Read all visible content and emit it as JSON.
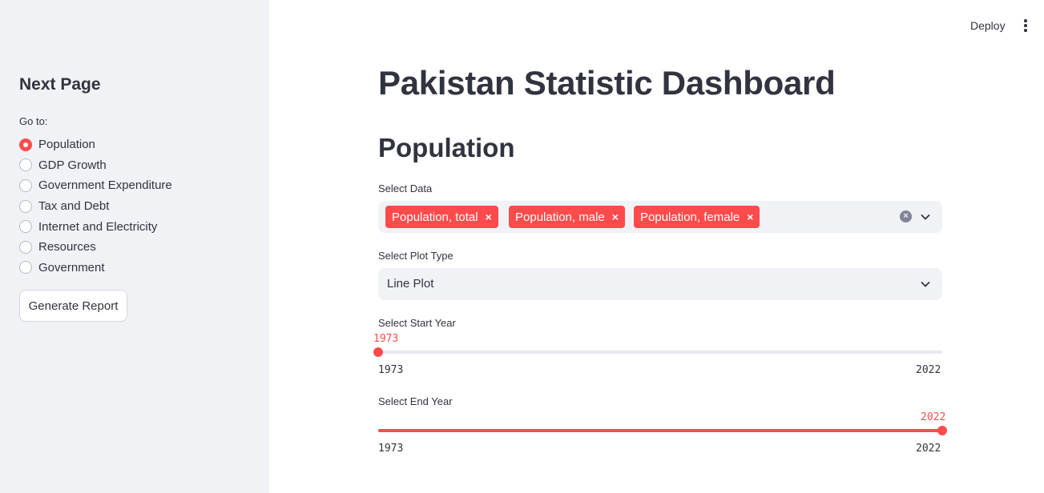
{
  "header": {
    "deploy_label": "Deploy",
    "menu_icon": "vertical-ellipsis"
  },
  "sidebar": {
    "title": "Next Page",
    "radio_label": "Go to:",
    "items": [
      {
        "label": "Population",
        "selected": true
      },
      {
        "label": "GDP Growth",
        "selected": false
      },
      {
        "label": "Government Expenditure",
        "selected": false
      },
      {
        "label": "Tax and Debt",
        "selected": false
      },
      {
        "label": "Internet and Electricity",
        "selected": false
      },
      {
        "label": "Resources",
        "selected": false
      },
      {
        "label": "Government",
        "selected": false
      }
    ],
    "report_button": "Generate Report"
  },
  "main": {
    "title": "Pakistan Statistic Dashboard",
    "section_title": "Population",
    "select_data": {
      "label": "Select Data",
      "selected": [
        "Population, total",
        "Population, male",
        "Population, female"
      ],
      "remove_glyph": "×",
      "clear_glyph": "×"
    },
    "plot_type": {
      "label": "Select Plot Type",
      "value": "Line Plot"
    },
    "start_year": {
      "label": "Select Start Year",
      "value": "1973",
      "min": "1973",
      "max": "2022",
      "fraction": 0
    },
    "end_year": {
      "label": "Select End Year",
      "value": "2022",
      "min": "1973",
      "max": "2022",
      "fraction": 1
    }
  },
  "colors": {
    "accent": "#ff4b4b",
    "sidebar_bg": "#f0f2f6",
    "text": "#31333f"
  }
}
